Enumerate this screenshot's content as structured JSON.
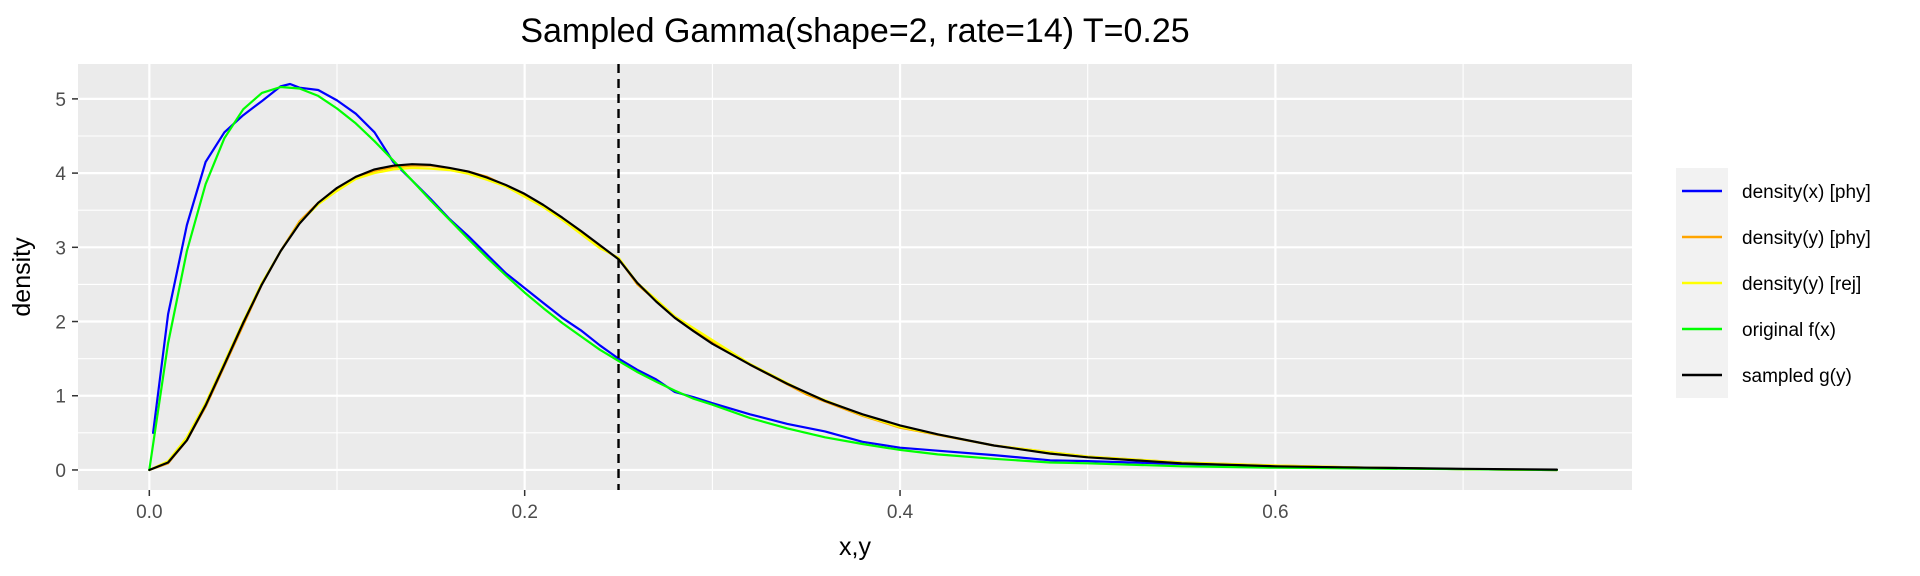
{
  "chart_data": {
    "type": "line",
    "title": "Sampled Gamma(shape=2, rate=14) T=0.25",
    "xlabel": "x,y",
    "ylabel": "density",
    "xlim": [
      -0.038,
      0.79
    ],
    "ylim": [
      -0.27,
      5.47
    ],
    "x_ticks": [
      0.0,
      0.2,
      0.4,
      0.6
    ],
    "x_tick_labels": [
      "0.0",
      "0.2",
      "0.4",
      "0.6"
    ],
    "y_ticks": [
      0,
      1,
      2,
      3,
      4,
      5
    ],
    "y_tick_labels": [
      "0",
      "1",
      "2",
      "3",
      "4",
      "5"
    ],
    "grid": true,
    "legend_position": "right",
    "vline": {
      "x": 0.25,
      "style": "dashed",
      "color": "#000000"
    },
    "series": [
      {
        "name": "density(x) [phy]",
        "color": "#0000ff",
        "x": [
          0.002,
          0.01,
          0.02,
          0.03,
          0.04,
          0.05,
          0.06,
          0.07,
          0.075,
          0.08,
          0.09,
          0.1,
          0.11,
          0.12,
          0.13,
          0.14,
          0.15,
          0.16,
          0.17,
          0.18,
          0.19,
          0.2,
          0.21,
          0.22,
          0.23,
          0.24,
          0.25,
          0.26,
          0.27,
          0.28,
          0.29,
          0.3,
          0.32,
          0.34,
          0.36,
          0.38,
          0.4,
          0.42,
          0.45,
          0.48,
          0.5,
          0.55,
          0.6,
          0.65,
          0.7,
          0.75
        ],
        "y": [
          0.5,
          2.1,
          3.3,
          4.15,
          4.55,
          4.78,
          4.97,
          5.17,
          5.2,
          5.15,
          5.12,
          4.98,
          4.8,
          4.55,
          4.15,
          3.9,
          3.65,
          3.38,
          3.15,
          2.9,
          2.65,
          2.45,
          2.25,
          2.05,
          1.88,
          1.68,
          1.5,
          1.35,
          1.22,
          1.05,
          0.98,
          0.9,
          0.75,
          0.62,
          0.52,
          0.38,
          0.3,
          0.26,
          0.2,
          0.13,
          0.12,
          0.08,
          0.05,
          0.03,
          0.01,
          0.0
        ]
      },
      {
        "name": "density(y) [phy]",
        "color": "#ffa500",
        "x": [
          0.0,
          0.01,
          0.02,
          0.03,
          0.04,
          0.05,
          0.06,
          0.07,
          0.08,
          0.09,
          0.1,
          0.11,
          0.12,
          0.13,
          0.14,
          0.15,
          0.16,
          0.17,
          0.18,
          0.19,
          0.2,
          0.21,
          0.22,
          0.23,
          0.24,
          0.25,
          0.26,
          0.27,
          0.28,
          0.3,
          0.32,
          0.35,
          0.38,
          0.4,
          0.45,
          0.5,
          0.55,
          0.6,
          0.65,
          0.7,
          0.75
        ],
        "y": [
          0.0,
          0.09,
          0.4,
          0.85,
          1.4,
          1.95,
          2.5,
          2.95,
          3.35,
          3.6,
          3.78,
          3.93,
          4.03,
          4.08,
          4.1,
          4.1,
          4.06,
          4.02,
          3.95,
          3.83,
          3.7,
          3.55,
          3.38,
          3.2,
          3.0,
          2.85,
          2.5,
          2.28,
          2.05,
          1.72,
          1.42,
          1.02,
          0.73,
          0.57,
          0.33,
          0.18,
          0.1,
          0.06,
          0.03,
          0.01,
          0.0
        ]
      },
      {
        "name": "density(y) [rej]",
        "color": "#ffff00",
        "x": [
          0.0,
          0.01,
          0.02,
          0.03,
          0.04,
          0.05,
          0.06,
          0.07,
          0.08,
          0.09,
          0.1,
          0.11,
          0.12,
          0.13,
          0.14,
          0.15,
          0.16,
          0.17,
          0.18,
          0.19,
          0.2,
          0.21,
          0.22,
          0.23,
          0.24,
          0.25,
          0.26,
          0.27,
          0.28,
          0.3,
          0.32,
          0.35,
          0.38,
          0.4,
          0.45,
          0.5,
          0.55,
          0.6,
          0.65,
          0.7,
          0.75
        ],
        "y": [
          0.0,
          0.12,
          0.44,
          0.9,
          1.45,
          2.0,
          2.52,
          2.95,
          3.33,
          3.58,
          3.76,
          3.92,
          4.0,
          4.05,
          4.07,
          4.06,
          4.04,
          3.99,
          3.91,
          3.82,
          3.68,
          3.54,
          3.37,
          3.18,
          2.99,
          2.86,
          2.52,
          2.3,
          2.07,
          1.75,
          1.43,
          1.04,
          0.74,
          0.58,
          0.33,
          0.18,
          0.1,
          0.06,
          0.03,
          0.01,
          0.0
        ]
      },
      {
        "name": "original f(x)",
        "color": "#00ff00",
        "x": [
          0.0,
          0.01,
          0.02,
          0.03,
          0.04,
          0.05,
          0.06,
          0.07,
          0.08,
          0.09,
          0.1,
          0.11,
          0.12,
          0.13,
          0.14,
          0.15,
          0.16,
          0.17,
          0.18,
          0.19,
          0.2,
          0.21,
          0.22,
          0.23,
          0.24,
          0.25,
          0.26,
          0.27,
          0.28,
          0.29,
          0.3,
          0.32,
          0.34,
          0.36,
          0.38,
          0.4,
          0.42,
          0.45,
          0.48,
          0.5,
          0.55,
          0.6,
          0.65,
          0.7,
          0.75
        ],
        "y": [
          0.0,
          1.71,
          2.95,
          3.85,
          4.47,
          4.86,
          5.08,
          5.16,
          5.14,
          5.04,
          4.87,
          4.67,
          4.43,
          4.17,
          3.9,
          3.63,
          3.37,
          3.11,
          2.86,
          2.62,
          2.39,
          2.18,
          1.98,
          1.8,
          1.62,
          1.47,
          1.32,
          1.19,
          1.07,
          0.96,
          0.88,
          0.7,
          0.56,
          0.44,
          0.35,
          0.27,
          0.21,
          0.15,
          0.1,
          0.09,
          0.05,
          0.03,
          0.02,
          0.01,
          0.0
        ]
      },
      {
        "name": "sampled g(y)",
        "color": "#000000",
        "x": [
          0.0,
          0.01,
          0.02,
          0.03,
          0.04,
          0.05,
          0.06,
          0.07,
          0.08,
          0.09,
          0.1,
          0.11,
          0.12,
          0.13,
          0.14,
          0.15,
          0.16,
          0.17,
          0.18,
          0.19,
          0.2,
          0.21,
          0.22,
          0.23,
          0.24,
          0.25,
          0.26,
          0.27,
          0.28,
          0.29,
          0.3,
          0.32,
          0.34,
          0.36,
          0.38,
          0.4,
          0.42,
          0.45,
          0.48,
          0.5,
          0.55,
          0.6,
          0.65,
          0.7,
          0.75
        ],
        "y": [
          0.0,
          0.1,
          0.4,
          0.87,
          1.42,
          1.98,
          2.5,
          2.95,
          3.32,
          3.6,
          3.8,
          3.95,
          4.05,
          4.1,
          4.12,
          4.11,
          4.07,
          4.02,
          3.94,
          3.84,
          3.72,
          3.57,
          3.4,
          3.22,
          3.03,
          2.84,
          2.52,
          2.27,
          2.05,
          1.87,
          1.7,
          1.42,
          1.16,
          0.93,
          0.75,
          0.6,
          0.48,
          0.33,
          0.22,
          0.17,
          0.09,
          0.05,
          0.03,
          0.015,
          0.005
        ]
      }
    ]
  }
}
